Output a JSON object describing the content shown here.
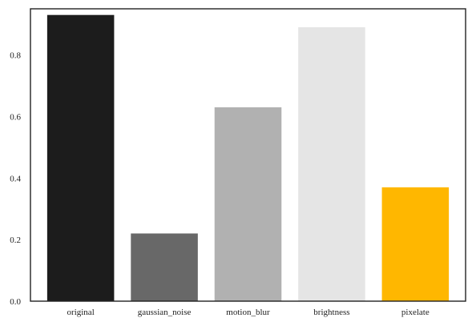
{
  "chart_data": {
    "type": "bar",
    "categories": [
      "original",
      "gaussian_noise",
      "motion_blur",
      "brightness",
      "pixelate"
    ],
    "values": [
      0.93,
      0.22,
      0.63,
      0.89,
      0.37
    ],
    "colors": [
      "#1c1c1c",
      "#686868",
      "#b1b1b1",
      "#e5e5e5",
      "#ffb700"
    ],
    "ylim": [
      0,
      0.95
    ],
    "yticks": [
      0.0,
      0.2,
      0.4,
      0.6,
      0.8
    ],
    "ytick_labels": [
      "0.0",
      "0.2",
      "0.4",
      "0.6",
      "0.8"
    ],
    "grid": false
  }
}
